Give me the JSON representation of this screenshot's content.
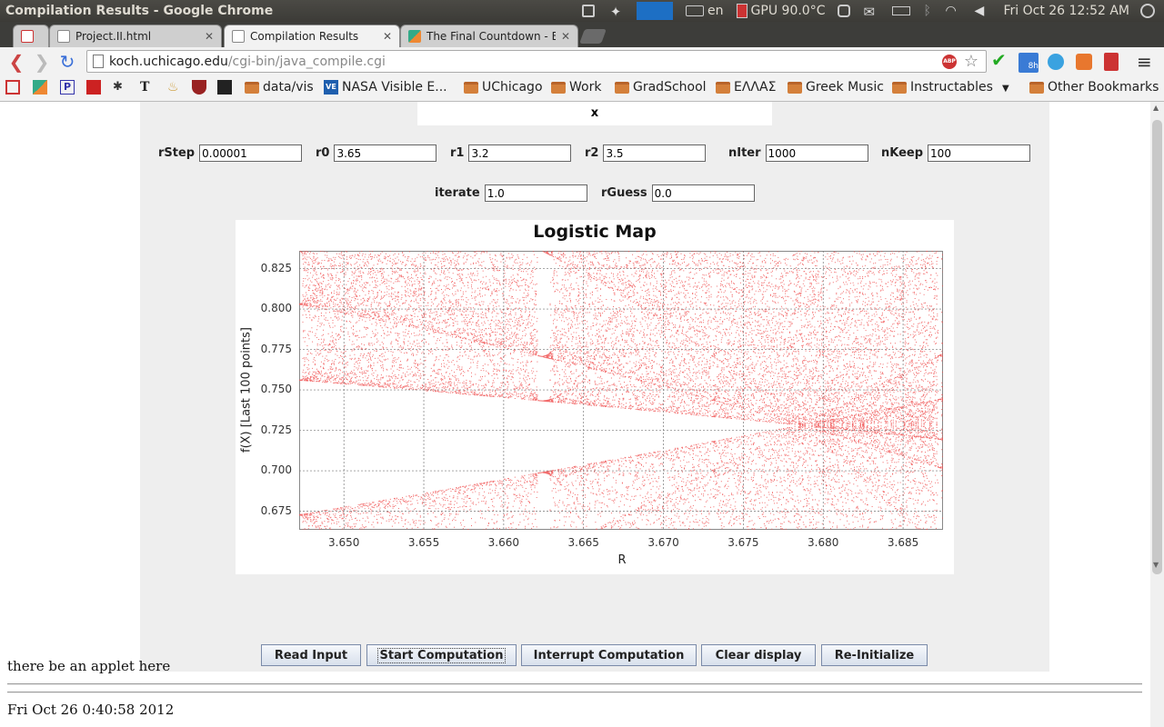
{
  "os_panel": {
    "window_title": "Compilation Results - Google Chrome",
    "keyboard": "en",
    "gpu": "GPU 90.0°C",
    "clock": "Fri Oct 26  12:52 AM"
  },
  "tabs": [
    {
      "label": "",
      "icon": "gmail-icon"
    },
    {
      "label": "Project.II.html",
      "icon": "document-icon"
    },
    {
      "label": "Compilation Results",
      "icon": "document-icon",
      "active": true
    },
    {
      "label": "The Final Countdown - Eur",
      "icon": "play-icon"
    }
  ],
  "toolbar": {
    "url_host": "koch.uchicago.edu",
    "url_path": "/cgi-bin/java_compile.cgi",
    "calendar_badge": "8h"
  },
  "bookmarks": [
    {
      "label": "data/vis",
      "type": "folder"
    },
    {
      "label": "NASA Visible E...",
      "type": "site"
    },
    {
      "label": "UChicago",
      "type": "folder"
    },
    {
      "label": "Work",
      "type": "folder"
    },
    {
      "label": "GradSchool",
      "type": "folder"
    },
    {
      "label": "ΕΛΛΑΣ",
      "type": "folder"
    },
    {
      "label": "Greek Music",
      "type": "folder"
    },
    {
      "label": "Instructables",
      "type": "folder"
    },
    {
      "label": "Other Bookmarks",
      "type": "folder"
    }
  ],
  "applet": {
    "x_label": "x",
    "fields": {
      "rStep": {
        "label": "rStep",
        "value": "0.00001"
      },
      "r0": {
        "label": "r0",
        "value": "3.65"
      },
      "r1": {
        "label": "r1",
        "value": "3.2"
      },
      "r2": {
        "label": "r2",
        "value": "3.5"
      },
      "nIter": {
        "label": "nIter",
        "value": "1000"
      },
      "nKeep": {
        "label": "nKeep",
        "value": "100"
      },
      "iterate": {
        "label": "iterate",
        "value": "1.0"
      },
      "rGuess": {
        "label": "rGuess",
        "value": "0.0"
      }
    },
    "buttons": {
      "read": "Read Input",
      "start": "Start Computation",
      "interrupt": "Interrupt Computation",
      "clear": "Clear display",
      "reinit": "Re-Initialize"
    }
  },
  "chart_data": {
    "type": "scatter",
    "title": "Logistic Map",
    "xlabel": "R",
    "ylabel": "f(X) [Last 100 points]",
    "xlim": [
      3.6472,
      3.6875
    ],
    "ylim": [
      0.6635,
      0.836
    ],
    "x_ticks": [
      "3.650",
      "3.655",
      "3.660",
      "3.665",
      "3.670",
      "3.675",
      "3.680",
      "3.685"
    ],
    "y_ticks": [
      "0.675",
      "0.700",
      "0.725",
      "0.750",
      "0.775",
      "0.800",
      "0.825"
    ],
    "series_color": "#f05050",
    "grid": true
  },
  "page": {
    "applet_message": "there be an applet here",
    "timestamp": "Fri Oct 26 0:40:58 2012"
  }
}
